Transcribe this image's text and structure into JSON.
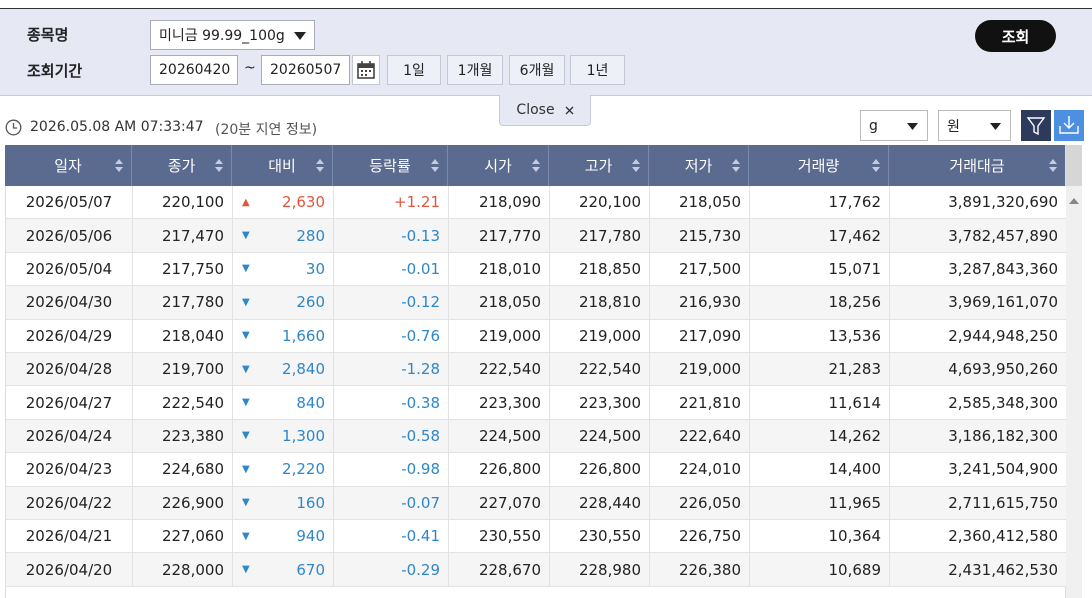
{
  "search": {
    "item_label": "종목명",
    "item_value": "미니금 99.99_100g",
    "period_label": "조회기간",
    "date_from": "20260420",
    "date_sep": "~",
    "date_to": "20260507",
    "ranges": [
      "1일",
      "1개월",
      "6개월",
      "1년"
    ],
    "submit": "조회"
  },
  "close_label": "Close",
  "status": {
    "timestamp": "2026.05.08 AM 07:33:47",
    "delay_note": "(20분 지연 정보)"
  },
  "unit_selects": [
    "g",
    "원"
  ],
  "table": {
    "headers": [
      "일자",
      "종가",
      "대비",
      "등락률",
      "시가",
      "고가",
      "저가",
      "거래량",
      "거래대금"
    ],
    "rows": [
      [
        "2026/05/07",
        "220,100",
        "▲",
        "2,630",
        "+1.21",
        "218,090",
        "220,100",
        "218,050",
        "17,762",
        "3,891,320,690"
      ],
      [
        "2026/05/06",
        "217,470",
        "▼",
        "280",
        "-0.13",
        "217,770",
        "217,780",
        "215,730",
        "17,462",
        "3,782,457,890"
      ],
      [
        "2026/05/04",
        "217,750",
        "▼",
        "30",
        "-0.01",
        "218,010",
        "218,850",
        "217,500",
        "15,071",
        "3,287,843,360"
      ],
      [
        "2026/04/30",
        "217,780",
        "▼",
        "260",
        "-0.12",
        "218,050",
        "218,810",
        "216,930",
        "18,256",
        "3,969,161,070"
      ],
      [
        "2026/04/29",
        "218,040",
        "▼",
        "1,660",
        "-0.76",
        "219,000",
        "219,000",
        "217,090",
        "13,536",
        "2,944,948,250"
      ],
      [
        "2026/04/28",
        "219,700",
        "▼",
        "2,840",
        "-1.28",
        "222,540",
        "222,540",
        "219,000",
        "21,283",
        "4,693,950,260"
      ],
      [
        "2026/04/27",
        "222,540",
        "▼",
        "840",
        "-0.38",
        "223,300",
        "223,300",
        "221,810",
        "11,614",
        "2,585,348,300"
      ],
      [
        "2026/04/24",
        "223,380",
        "▼",
        "1,300",
        "-0.58",
        "224,500",
        "224,500",
        "222,640",
        "14,262",
        "3,186,182,300"
      ],
      [
        "2026/04/23",
        "224,680",
        "▼",
        "2,220",
        "-0.98",
        "226,800",
        "226,800",
        "224,010",
        "14,400",
        "3,241,504,900"
      ],
      [
        "2026/04/22",
        "226,900",
        "▼",
        "160",
        "-0.07",
        "227,070",
        "228,440",
        "226,050",
        "11,965",
        "2,711,615,750"
      ],
      [
        "2026/04/21",
        "227,060",
        "▼",
        "940",
        "-0.41",
        "230,550",
        "230,550",
        "226,750",
        "10,364",
        "2,360,412,580"
      ],
      [
        "2026/04/20",
        "228,000",
        "▼",
        "670",
        "-0.29",
        "228,670",
        "228,980",
        "226,380",
        "10,689",
        "2,431,462,530"
      ]
    ]
  }
}
